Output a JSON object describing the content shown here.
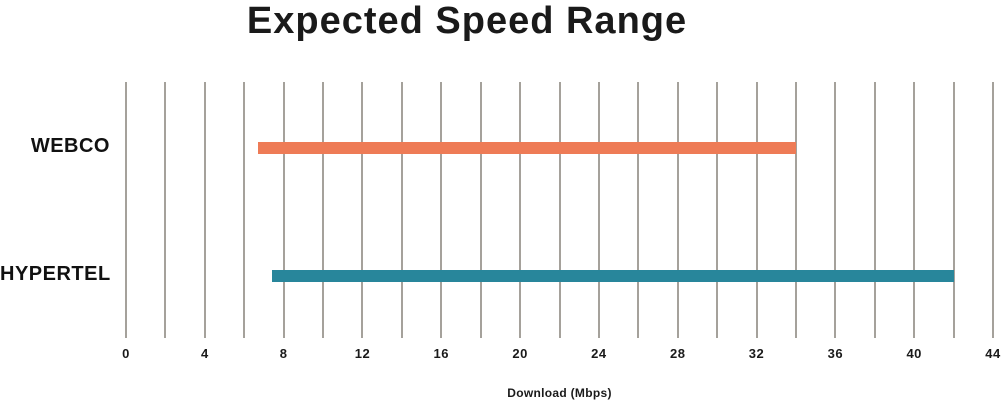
{
  "chart_data": {
    "type": "bar",
    "orientation": "horizontal-range",
    "title": "Expected Speed Range",
    "xlabel": "Download (Mbps)",
    "categories": [
      "WEBCO",
      "HYPERTEL"
    ],
    "series": [
      {
        "name": "WEBCO",
        "range": [
          6.7,
          34
        ],
        "color": "#ee7b56"
      },
      {
        "name": "HYPERTEL",
        "range": [
          7.4,
          42
        ],
        "color": "#28869b"
      }
    ],
    "xlim": [
      0,
      44
    ],
    "x_ticks": [
      0,
      4,
      8,
      12,
      16,
      20,
      24,
      28,
      32,
      36,
      40,
      44
    ],
    "x_grid_step": 2,
    "grid": true,
    "legend": "none",
    "colors": {
      "gridline": "#a5a19b",
      "text": "#1a1a1a",
      "background": "#ffffff"
    }
  }
}
